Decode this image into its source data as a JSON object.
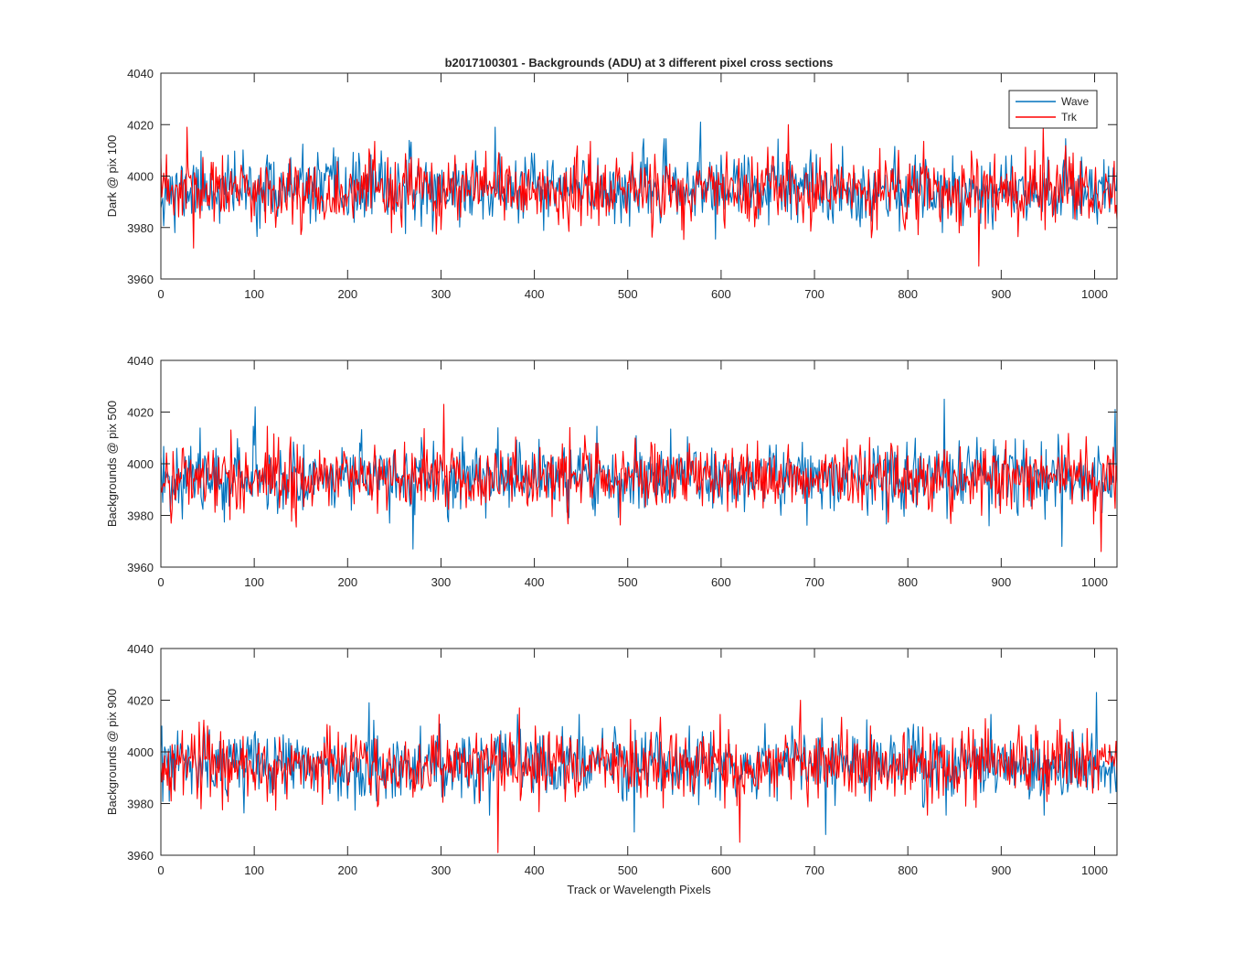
{
  "figure": {
    "title": "b2017100301 - Backgrounds (ADU) at 3 different pixel cross sections",
    "xlabel": "Track or Wavelength Pixels"
  },
  "colors": {
    "wave": "#0072BD",
    "trk": "#FF0000",
    "axes": "#262626"
  },
  "chart_data": [
    {
      "type": "line",
      "ylabel": "Dark @ pix 100",
      "xlim": [
        0,
        1024
      ],
      "ylim": [
        3960,
        4040
      ],
      "xticks": [
        0,
        100,
        200,
        300,
        400,
        500,
        600,
        700,
        800,
        900,
        1000
      ],
      "yticks": [
        3960,
        3980,
        4000,
        4020,
        4040
      ],
      "grid": false,
      "legend": {
        "placement": "top-right",
        "entries": [
          "Wave",
          "Trk"
        ]
      },
      "series": [
        {
          "name": "Wave",
          "color": "#0072BD",
          "mean": 3995,
          "std": 6.5,
          "seed": 11,
          "extremes": [
            {
              "x": 578,
              "y": 4021
            },
            {
              "x": 358,
              "y": 4019
            },
            {
              "x": 15,
              "y": 3978
            }
          ]
        },
        {
          "name": "Trk",
          "color": "#FF0000",
          "mean": 3994,
          "std": 6.5,
          "seed": 23,
          "extremes": [
            {
              "x": 876,
              "y": 3965
            },
            {
              "x": 672,
              "y": 4020
            },
            {
              "x": 28,
              "y": 4019
            },
            {
              "x": 35,
              "y": 3972
            },
            {
              "x": 945,
              "y": 4019
            }
          ]
        }
      ]
    },
    {
      "type": "line",
      "ylabel": "Backgrounds @ pix 500",
      "xlim": [
        0,
        1024
      ],
      "ylim": [
        3960,
        4040
      ],
      "xticks": [
        0,
        100,
        200,
        300,
        400,
        500,
        600,
        700,
        800,
        900,
        1000
      ],
      "yticks": [
        3960,
        3980,
        4000,
        4020,
        4040
      ],
      "grid": false,
      "series": [
        {
          "name": "Wave",
          "color": "#0072BD",
          "mean": 3995,
          "std": 6.5,
          "seed": 37,
          "extremes": [
            {
              "x": 101,
              "y": 4022
            },
            {
              "x": 839,
              "y": 4025
            },
            {
              "x": 270,
              "y": 3967
            },
            {
              "x": 1022,
              "y": 4021
            },
            {
              "x": 965,
              "y": 3968
            }
          ]
        },
        {
          "name": "Trk",
          "color": "#FF0000",
          "mean": 3995,
          "std": 6.5,
          "seed": 41,
          "extremes": [
            {
              "x": 303,
              "y": 4023
            },
            {
              "x": 1007,
              "y": 3966
            },
            {
              "x": 11,
              "y": 3977
            }
          ]
        }
      ]
    },
    {
      "type": "line",
      "ylabel": "Backgrounds @ pix 900",
      "xlim": [
        0,
        1024
      ],
      "ylim": [
        3960,
        4040
      ],
      "xticks": [
        0,
        100,
        200,
        300,
        400,
        500,
        600,
        700,
        800,
        900,
        1000
      ],
      "yticks": [
        3960,
        3980,
        4000,
        4020,
        4040
      ],
      "grid": false,
      "series": [
        {
          "name": "Wave",
          "color": "#0072BD",
          "mean": 3995,
          "std": 6.5,
          "seed": 53,
          "extremes": [
            {
              "x": 1002,
              "y": 4023
            },
            {
              "x": 223,
              "y": 4019
            },
            {
              "x": 712,
              "y": 3968
            },
            {
              "x": 507,
              "y": 3969
            }
          ]
        },
        {
          "name": "Trk",
          "color": "#FF0000",
          "mean": 3995,
          "std": 6.5,
          "seed": 67,
          "extremes": [
            {
              "x": 361,
              "y": 3961
            },
            {
              "x": 620,
              "y": 3965
            },
            {
              "x": 685,
              "y": 4020
            },
            {
              "x": 384,
              "y": 4017
            }
          ]
        }
      ]
    }
  ]
}
